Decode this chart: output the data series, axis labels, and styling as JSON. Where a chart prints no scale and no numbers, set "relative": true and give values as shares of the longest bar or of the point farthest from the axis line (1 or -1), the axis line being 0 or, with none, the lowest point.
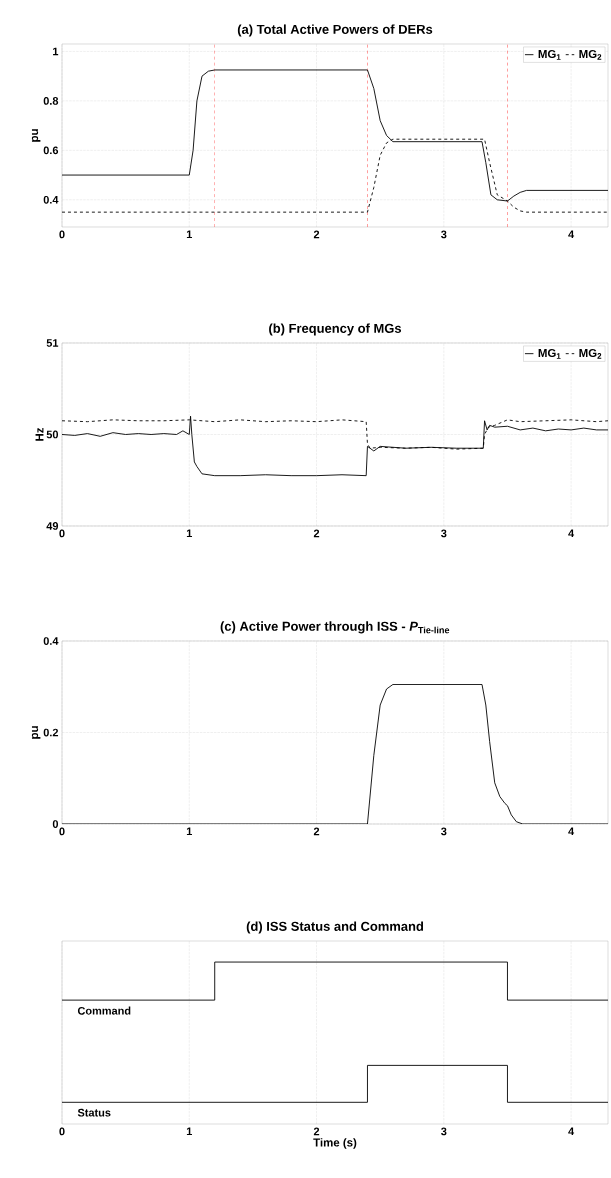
{
  "chart_data": [
    {
      "type": "line",
      "title": "(a) Total Active Powers of DERs",
      "ylabel": "pu",
      "xlim": [
        0,
        4.29
      ],
      "ylim": [
        0.29,
        1.03
      ],
      "xticks": [
        0,
        1,
        2,
        3,
        4
      ],
      "yticks": [
        0.4,
        0.6,
        0.8,
        1
      ],
      "grid": true,
      "legend": "top right",
      "marker": "none",
      "ref_lines": [
        {
          "axis": "x",
          "value": 1.2,
          "color": "#ff0000",
          "line_style": "dashed"
        },
        {
          "axis": "x",
          "value": 2.4,
          "color": "#ff0000",
          "line_style": "dashed"
        },
        {
          "axis": "x",
          "value": 3.5,
          "color": "#ff0000",
          "line_style": "dashed"
        }
      ],
      "series": [
        {
          "name": "MG$_{1}$",
          "color": "#000000",
          "line_style": "solid",
          "x": [
            0,
            1.0,
            1.03,
            1.06,
            1.1,
            1.15,
            1.2,
            2.4,
            2.45,
            2.5,
            2.55,
            2.6,
            3.3,
            3.33,
            3.37,
            3.42,
            3.5,
            3.55,
            3.6,
            3.65,
            4.29
          ],
          "values": [
            0.5,
            0.5,
            0.6,
            0.8,
            0.9,
            0.92,
            0.925,
            0.925,
            0.85,
            0.72,
            0.66,
            0.635,
            0.635,
            0.55,
            0.42,
            0.4,
            0.395,
            0.415,
            0.43,
            0.438,
            0.438
          ]
        },
        {
          "name": "MG$_{2}$",
          "color": "#000000",
          "line_style": "dashed",
          "x": [
            0,
            2.4,
            2.45,
            2.5,
            2.55,
            2.6,
            3.32,
            3.36,
            3.42,
            3.5,
            3.55,
            3.6,
            3.65,
            3.7,
            4.29
          ],
          "values": [
            0.35,
            0.35,
            0.45,
            0.58,
            0.63,
            0.645,
            0.645,
            0.55,
            0.42,
            0.395,
            0.37,
            0.355,
            0.35,
            0.35,
            0.35
          ]
        }
      ]
    },
    {
      "type": "line",
      "title": "(b) Frequency of MGs",
      "ylabel": "Hz",
      "xlim": [
        0,
        4.29
      ],
      "ylim": [
        49,
        51
      ],
      "xticks": [
        0,
        1,
        2,
        3,
        4
      ],
      "yticks": [
        49,
        50,
        51
      ],
      "grid": true,
      "legend": "top right",
      "marker": "none",
      "series": [
        {
          "name": "MG$_{1}$",
          "color": "#000000",
          "line_style": "solid",
          "x": [
            0,
            0.1,
            0.2,
            0.3,
            0.4,
            0.5,
            0.6,
            0.7,
            0.8,
            0.9,
            0.95,
            1.0,
            1.01,
            1.02,
            1.04,
            1.06,
            1.1,
            1.2,
            1.4,
            1.6,
            1.8,
            2.0,
            2.2,
            2.39,
            2.4,
            2.45,
            2.5,
            2.7,
            2.9,
            3.1,
            3.31,
            3.32,
            3.34,
            3.36,
            3.4,
            3.5,
            3.6,
            3.7,
            3.8,
            3.9,
            4.0,
            4.1,
            4.2,
            4.29
          ],
          "values": [
            50.0,
            49.99,
            50.01,
            49.98,
            50.02,
            50.0,
            50.01,
            50.0,
            50.01,
            50.0,
            50.04,
            50.0,
            50.2,
            50.0,
            49.7,
            49.65,
            49.57,
            49.55,
            49.55,
            49.56,
            49.55,
            49.55,
            49.56,
            49.55,
            49.87,
            49.82,
            49.87,
            49.85,
            49.86,
            49.85,
            49.85,
            50.15,
            50.05,
            50.1,
            50.08,
            50.09,
            50.05,
            50.07,
            50.04,
            50.06,
            50.05,
            50.07,
            50.05,
            50.05
          ]
        },
        {
          "name": "MG$_{2}$",
          "color": "#000000",
          "line_style": "dashed",
          "x": [
            0,
            0.2,
            0.4,
            0.6,
            0.8,
            1.0,
            1.2,
            1.4,
            1.6,
            1.8,
            2.0,
            2.2,
            2.39,
            2.4,
            2.42,
            2.5,
            2.7,
            2.9,
            3.1,
            3.31,
            3.32,
            3.35,
            3.4,
            3.5,
            3.6,
            3.8,
            4.0,
            4.2,
            4.29
          ],
          "values": [
            50.15,
            50.14,
            50.16,
            50.15,
            50.15,
            50.16,
            50.14,
            50.16,
            50.14,
            50.15,
            50.14,
            50.16,
            50.14,
            49.9,
            49.85,
            49.86,
            49.85,
            49.86,
            49.84,
            49.85,
            50.0,
            50.08,
            50.1,
            50.16,
            50.14,
            50.15,
            50.16,
            50.14,
            50.15
          ]
        }
      ]
    },
    {
      "type": "line",
      "title": "(c) Active Power through ISS - *P*$_{Tie-line}$",
      "ylabel": "pu",
      "xlim": [
        0,
        4.29
      ],
      "ylim": [
        0,
        0.4
      ],
      "xticks": [
        0,
        1,
        2,
        3,
        4
      ],
      "yticks": [
        0,
        0.2,
        0.4
      ],
      "grid": true,
      "marker": "none",
      "series": [
        {
          "color": "#000000",
          "line_style": "solid",
          "x": [
            0,
            2.4,
            2.45,
            2.5,
            2.55,
            2.6,
            3.3,
            3.33,
            3.36,
            3.4,
            3.44,
            3.48,
            3.5,
            3.53,
            3.57,
            3.62,
            4.29
          ],
          "values": [
            0,
            0,
            0.15,
            0.26,
            0.295,
            0.305,
            0.305,
            0.26,
            0.18,
            0.09,
            0.06,
            0.045,
            0.04,
            0.02,
            0.005,
            0,
            0
          ]
        }
      ]
    },
    {
      "type": "step",
      "title": "(d) ISS Status and Command",
      "xlabel": "Time (s)",
      "relative": true,
      "xlim": [
        0,
        4.29
      ],
      "xticks": [
        0,
        1,
        2,
        3,
        4
      ],
      "grid": "x",
      "tick_labels": "x",
      "marker": "none",
      "series": [
        {
          "name": "Command",
          "color": "#000000",
          "line_style": "solid",
          "x": [
            0,
            1.2,
            3.5,
            4.29
          ],
          "values": [
            0.765,
            1,
            0.765,
            0.765
          ]
        },
        {
          "name": "Status",
          "color": "#000000",
          "line_style": "solid",
          "x": [
            0,
            2.4,
            3.5,
            4.29
          ],
          "values": [
            0.134,
            0.362,
            0.134,
            0.134
          ]
        }
      ]
    }
  ]
}
